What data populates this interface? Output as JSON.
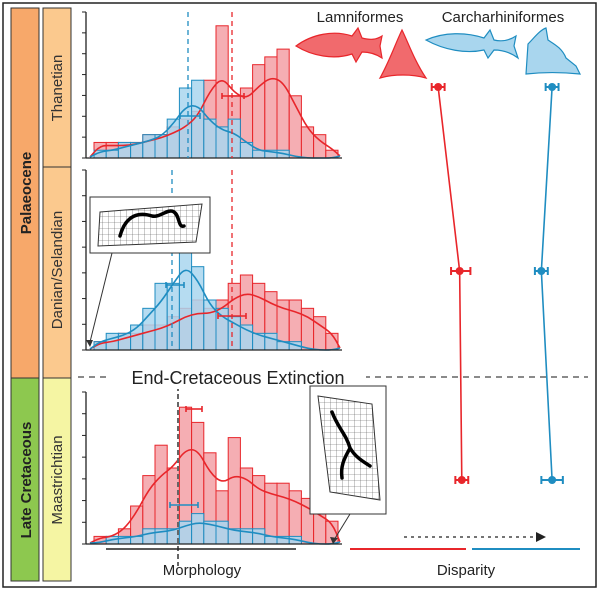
{
  "eras": {
    "palaeocene": "Palaeocene",
    "late_cretaceous": "Late Cretaceous"
  },
  "stages": {
    "thanetian": "Thanetian",
    "danian_selandian": "Danian/Selandian",
    "maastrichtian": "Maastrichtian"
  },
  "event_label": "End-Cretaceous Extinction",
  "x_axis_left": "Morphology",
  "x_axis_right": "Disparity",
  "legend": {
    "lamniformes": "Lamniformes",
    "carcharhiniformes": "Carcharhiniformes"
  },
  "colors": {
    "lamniformes": "#e8262b",
    "carcharhiniformes": "#1f8dc1",
    "lamniformes_fill": "#f3a0a6",
    "carcharhiniformes_fill": "#a9d6ee",
    "palaeocene_band": "#f7a86a",
    "stage_band": "#fbc98e",
    "late_cretaceous_band": "#8dc84f",
    "maastrichtian_band": "#f5f5a3"
  },
  "disparity": {
    "lamniformes": [
      {
        "stage": "Thanetian",
        "value": 0.41,
        "err": [
          0.38,
          0.44
        ]
      },
      {
        "stage": "Danian/Selandian",
        "value": 0.51,
        "err": [
          0.47,
          0.56
        ]
      },
      {
        "stage": "Maastrichtian",
        "value": 0.52,
        "err": [
          0.49,
          0.55
        ]
      }
    ],
    "carcharhiniformes": [
      {
        "stage": "Thanetian",
        "value": 0.94,
        "err": [
          0.91,
          0.97
        ]
      },
      {
        "stage": "Danian/Selandian",
        "value": 0.89,
        "err": [
          0.86,
          0.92
        ]
      },
      {
        "stage": "Maastrichtian",
        "value": 0.94,
        "err": [
          0.89,
          0.99
        ]
      }
    ]
  },
  "histograms": {
    "thanetian": {
      "lamniformes": [
        2,
        2,
        2,
        2,
        3,
        3,
        4,
        5,
        6,
        10,
        17,
        8,
        9,
        12,
        13,
        14,
        8,
        4,
        3,
        1
      ],
      "carcharhiniformes": [
        1,
        1,
        2,
        2,
        3,
        3,
        5,
        9,
        10,
        5,
        4,
        5,
        2,
        1,
        1,
        1,
        0,
        0,
        0,
        0
      ]
    },
    "danian_selandian": {
      "lamniformes": [
        1,
        1,
        2,
        2,
        3,
        3,
        4,
        5,
        6,
        5,
        6,
        8,
        9,
        8,
        7,
        6,
        6,
        5,
        4,
        2
      ],
      "carcharhiniformes": [
        1,
        2,
        2,
        3,
        5,
        8,
        8,
        16,
        10,
        6,
        5,
        4,
        3,
        2,
        2,
        1,
        1,
        0,
        0,
        0
      ]
    },
    "maastrichtian": {
      "lamniformes": [
        1,
        1,
        2,
        5,
        9,
        13,
        10,
        18,
        16,
        12,
        7,
        14,
        10,
        9,
        8,
        8,
        7,
        6,
        5,
        3
      ],
      "carcharhiniformes": [
        0,
        1,
        1,
        1,
        2,
        2,
        2,
        3,
        4,
        3,
        3,
        2,
        2,
        2,
        1,
        1,
        1,
        0,
        0,
        0
      ]
    }
  }
}
